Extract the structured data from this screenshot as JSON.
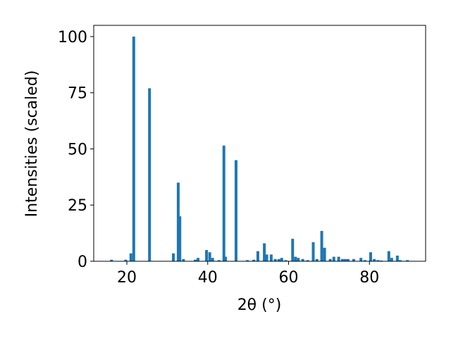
{
  "chart_data": {
    "type": "bar",
    "xlabel": "2θ (°)",
    "ylabel": "Intensities (scaled)",
    "x": [
      16.2,
      19.7,
      21.0,
      21.7,
      25.6,
      31.5,
      32.7,
      33.1,
      34.0,
      36.9,
      37.6,
      39.7,
      40.5,
      41.2,
      42.8,
      44.0,
      44.4,
      47.0,
      49.8,
      51.4,
      52.4,
      54.0,
      54.6,
      55.7,
      56.7,
      57.6,
      58.3,
      59.3,
      61.0,
      61.7,
      62.4,
      63.5,
      64.7,
      66.1,
      67.0,
      68.2,
      68.9,
      70.3,
      71.2,
      72.4,
      73.3,
      74.0,
      74.7,
      76.1,
      77.9,
      78.9,
      80.3,
      81.2,
      82.1,
      82.9,
      84.8,
      85.5,
      86.9,
      87.6,
      89.4
    ],
    "values": [
      0.7,
      0.7,
      3.5,
      100,
      77,
      3.5,
      35,
      20,
      1,
      0.7,
      1.5,
      5,
      4,
      1.5,
      0.5,
      51.5,
      2,
      45,
      0.5,
      0.7,
      4.5,
      8,
      3,
      3,
      1,
      1,
      1.5,
      0.5,
      10,
      2,
      1.5,
      1,
      0.5,
      8.5,
      1,
      13.5,
      6,
      1,
      2,
      2,
      1,
      1,
      1,
      1,
      1.5,
      0.5,
      4,
      1,
      0.5,
      0.3,
      4.5,
      1.5,
      2.5,
      0.5,
      0.5
    ],
    "color": "#1f77b4",
    "xlim": [
      11.8,
      93.9
    ],
    "xticks": [
      20,
      40,
      60,
      80
    ],
    "ylim": [
      0,
      105
    ],
    "yticks": [
      0,
      25,
      50,
      75,
      100
    ]
  }
}
